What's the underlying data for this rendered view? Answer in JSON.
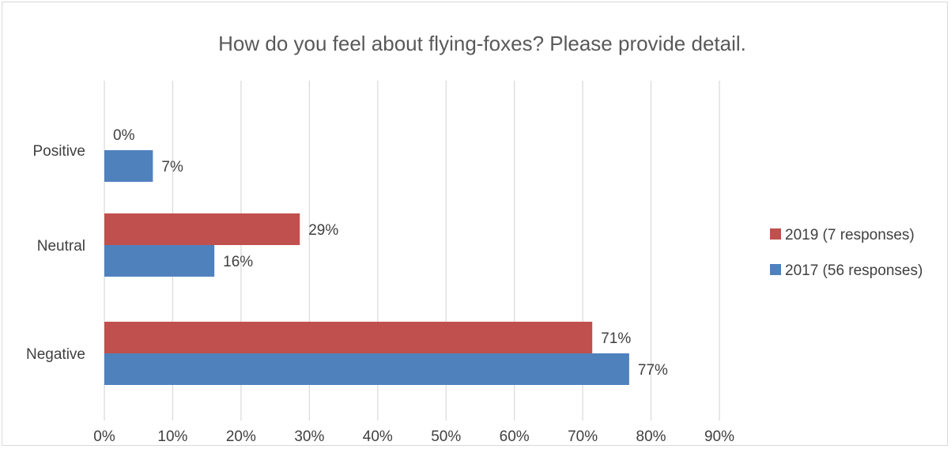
{
  "chart_data": {
    "type": "bar",
    "orientation": "horizontal",
    "title": "How do you feel about flying-foxes? Please provide detail.",
    "categories": [
      "Positive",
      "Neutral",
      "Negative"
    ],
    "series": [
      {
        "name": "2019 (7 responses)",
        "color": "#c0504d",
        "values": [
          0,
          28.6,
          71.4
        ],
        "labels": [
          "0%",
          "29%",
          "71%"
        ]
      },
      {
        "name": "2017 (56 responses)",
        "color": "#4f81bd",
        "values": [
          7.1,
          16.1,
          76.8
        ],
        "labels": [
          "7%",
          "16%",
          "77%"
        ]
      }
    ],
    "xlim": [
      0,
      90
    ],
    "xticks": [
      "0%",
      "10%",
      "20%",
      "30%",
      "40%",
      "50%",
      "60%",
      "70%",
      "80%",
      "90%"
    ],
    "grid": true,
    "legend_position": "right"
  }
}
